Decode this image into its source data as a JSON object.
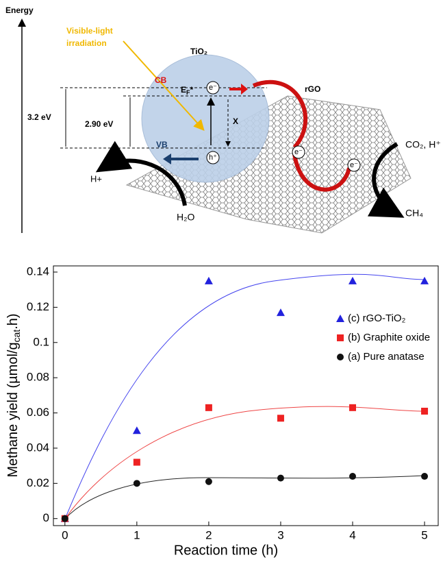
{
  "diagram": {
    "energy": "Energy",
    "light": [
      "Visible-light",
      "irradiation"
    ],
    "tio2": "TiO₂",
    "cb": "CB",
    "ef": [
      "E",
      "F",
      "*"
    ],
    "e_cb": "e⁻",
    "rgo": "rGO",
    "gap1": "3.2 eV",
    "gap2": "2.90 eV",
    "x": "X",
    "vb": "VB",
    "h": "h⁺",
    "hplus": "H+",
    "h2o": "H₂O",
    "e1": "e⁻",
    "e2": "e⁻",
    "co2": "CO₂, H⁺",
    "ch4": "CH₄"
  },
  "chart_data": {
    "type": "scatter",
    "x_label": "Reaction time (h)",
    "y_label": [
      "Methane yield (µmol/g",
      "cat",
      ".h)"
    ],
    "x": [
      0,
      1,
      2,
      3,
      4,
      5
    ],
    "series": [
      {
        "name": "(c) rGO-TiO₂",
        "color": "#2222dd",
        "marker": "triangle",
        "values": [
          0,
          0.05,
          0.135,
          0.117,
          0.135,
          0.135
        ]
      },
      {
        "name": "(b) Graphite oxide",
        "color": "#ee2222",
        "marker": "square",
        "values": [
          0,
          0.032,
          0.063,
          0.057,
          0.063,
          0.061
        ]
      },
      {
        "name": "(a) Pure anatase",
        "color": "#111111",
        "marker": "circle",
        "values": [
          0,
          0.02,
          0.021,
          0.023,
          0.024,
          0.024
        ]
      }
    ],
    "xlim": [
      -0.16,
      5.19
    ],
    "xticks": [
      0,
      1,
      2,
      3,
      4,
      5
    ],
    "ylim": [
      -0.004,
      0.1435
    ],
    "yticks": [
      0,
      0.02,
      0.04,
      0.06,
      0.08,
      0.1,
      0.12,
      0.14
    ]
  }
}
